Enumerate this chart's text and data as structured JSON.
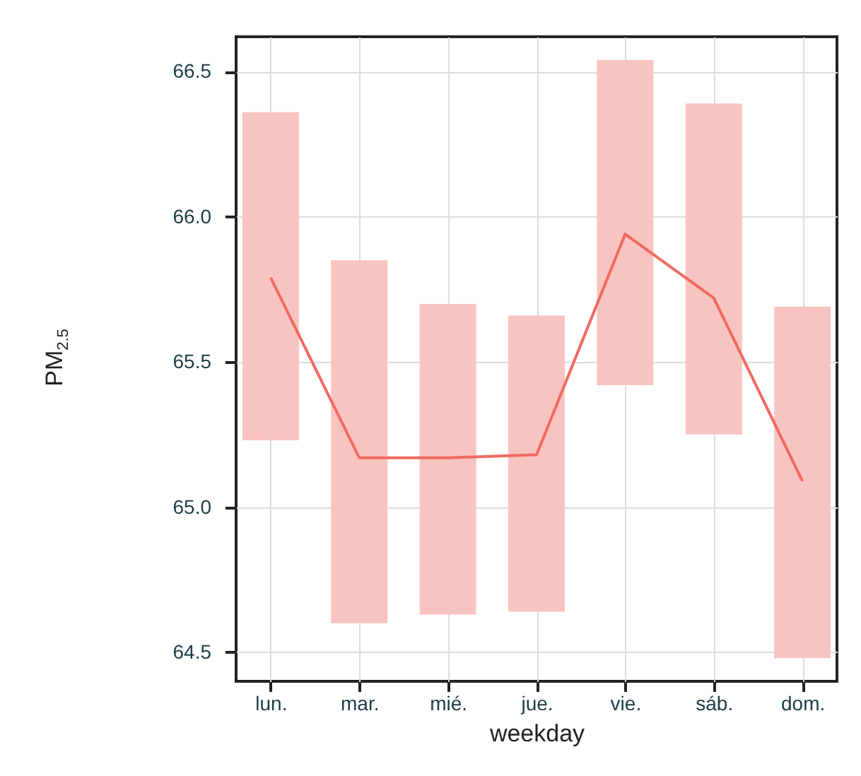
{
  "chart_data": {
    "type": "line",
    "xlabel": "weekday",
    "ylabel": "PM$_{2.5}$",
    "categories": [
      "lun.",
      "mar.",
      "mié.",
      "jue.",
      "vie.",
      "sáb.",
      "dom."
    ],
    "series": [
      {
        "type": "bar",
        "color": "#f8c4c1",
        "base": [
          65.23,
          64.6,
          64.63,
          64.64,
          65.42,
          65.25,
          64.48
        ],
        "values": [
          1.13,
          1.25,
          1.07,
          1.02,
          1.12,
          1.14,
          1.21
        ]
      },
      {
        "color": "#ef6a60",
        "values": [
          65.79,
          65.17,
          65.17,
          65.18,
          65.94,
          65.72,
          65.09
        ]
      }
    ],
    "ylim": [
      64.4,
      66.62
    ],
    "yticks": [
      64.5,
      {
        "value": 65,
        "label": "65.0"
      },
      65.5,
      {
        "value": 66,
        "label": "66.0"
      },
      66.5
    ],
    "grid": true
  }
}
